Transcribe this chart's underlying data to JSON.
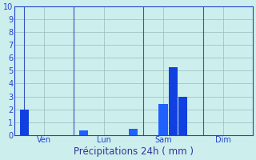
{
  "bars": [
    {
      "x": 1,
      "height": 2.0,
      "color": "#1040e0"
    },
    {
      "x": 7,
      "height": 0.35,
      "color": "#2060ff"
    },
    {
      "x": 12,
      "height": 0.45,
      "color": "#2060ff"
    },
    {
      "x": 15,
      "height": 2.4,
      "color": "#2060ff"
    },
    {
      "x": 16,
      "height": 5.3,
      "color": "#1040e0"
    },
    {
      "x": 17,
      "height": 3.0,
      "color": "#1040e0"
    }
  ],
  "day_lines": [
    1,
    6,
    13,
    19
  ],
  "day_labels": [
    {
      "label": "Ven",
      "x": 3
    },
    {
      "label": "Lun",
      "x": 9
    },
    {
      "label": "Sam",
      "x": 15
    },
    {
      "label": "Dim",
      "x": 21
    }
  ],
  "xlabel": "Précipitations 24h ( mm )",
  "xlim": [
    0,
    24
  ],
  "ylim": [
    0,
    10
  ],
  "yticks": [
    0,
    1,
    2,
    3,
    4,
    5,
    6,
    7,
    8,
    9,
    10
  ],
  "n_xticks": 25,
  "bg_color": "#cceeed",
  "bar_width": 0.9,
  "grid_color": "#99bbbb",
  "vert_line_color": "#3355bb",
  "axis_color": "#2244cc",
  "label_color": "#2244cc",
  "xlabel_color": "#333399",
  "xlabel_fontsize": 8.5,
  "tick_fontsize": 7
}
